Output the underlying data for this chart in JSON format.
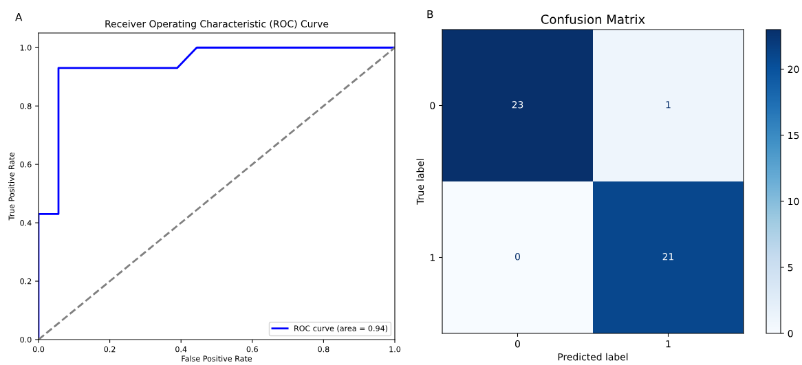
{
  "chart_data": [
    {
      "type": "line",
      "title": "Receiver Operating Characteristic (ROC) Curve",
      "xlabel": "False Positive Rate",
      "ylabel": "True Positive Rate",
      "annotations": [
        "A"
      ],
      "series": [
        {
          "name": "ROC curve (area = 0.94)",
          "color": "#0000ff",
          "x": [
            0,
            0,
            0.056,
            0.056,
            0.389,
            0.444,
            1
          ],
          "values": [
            0,
            0.43,
            0.43,
            0.93,
            0.93,
            1.0,
            1.0
          ],
          "line_style": "solid"
        },
        {
          "color": "#808080",
          "x": [
            0,
            1
          ],
          "values": [
            0,
            1
          ],
          "line_style": "dashed"
        }
      ],
      "xlim": [
        0,
        1
      ],
      "ylim": [
        0,
        1.05
      ],
      "xticks": [
        {
          "value": 0,
          "label": "0.0"
        },
        0.2,
        0.4,
        0.6,
        0.8,
        {
          "value": 1,
          "label": "1.0"
        }
      ],
      "yticks": [
        {
          "value": 0,
          "label": "0.0"
        },
        0.2,
        0.4,
        0.6,
        0.8,
        {
          "value": 1,
          "label": "1.0"
        }
      ],
      "legend": "bottom right",
      "grid": false
    },
    {
      "type": "heatmap",
      "title": "Confusion Matrix",
      "xlabel": "Predicted label",
      "ylabel": "True label",
      "annotations": [
        "B"
      ],
      "categories": [
        "0",
        "1"
      ],
      "y_categories": [
        "0",
        "1"
      ],
      "cells": [
        [
          23,
          1
        ],
        [
          0,
          21
        ]
      ],
      "clim": [
        0,
        23
      ],
      "cticks": [
        0,
        5,
        10,
        15,
        20
      ],
      "data_labels": true
    }
  ]
}
